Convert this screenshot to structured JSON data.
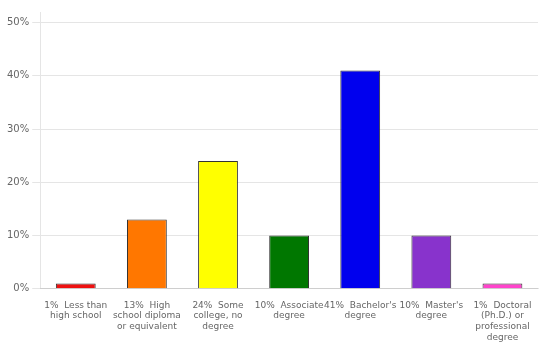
{
  "chart_data": {
    "type": "bar",
    "categories": [
      "1%  Less than\nhigh school",
      "13%  High\nschool diploma\nor equivalent",
      "24%  Some\ncollege, no\ndegree",
      "10%  Associate\ndegree",
      "41%  Bachelor's\ndegree",
      "10%  Master's\ndegree",
      "1%  Doctoral\n(Ph.D.) or\nprofessional\ndegree"
    ],
    "values": [
      1,
      13,
      24,
      10,
      41,
      10,
      1
    ],
    "colors": [
      "#ee1111",
      "#ff7700",
      "#ffff00",
      "#007700",
      "#0000ee",
      "#8833cc",
      "#ff44cc"
    ],
    "ylim": [
      0,
      52
    ],
    "yticks": [
      {
        "value": 0,
        "label": "0%"
      },
      {
        "value": 10,
        "label": "10%"
      },
      {
        "value": 20,
        "label": "20%"
      },
      {
        "value": 30,
        "label": "30%"
      },
      {
        "value": 40,
        "label": "40%"
      },
      {
        "value": 50,
        "label": "50%"
      }
    ],
    "grid": true
  }
}
